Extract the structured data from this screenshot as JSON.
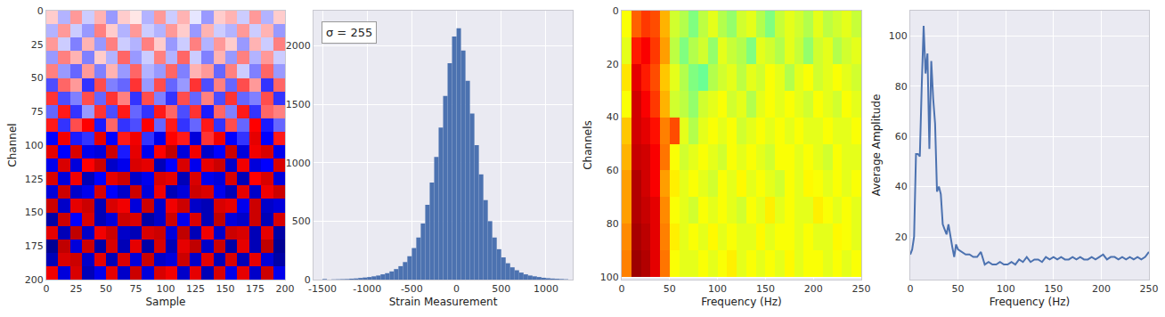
{
  "chart_data": [
    {
      "type": "heatmap",
      "color": "seismic",
      "xlabel": "Sample",
      "ylabel": "Channel",
      "x": [
        5,
        15,
        25,
        35,
        45,
        55,
        65,
        75,
        85,
        95,
        105,
        115,
        125,
        135,
        145,
        155,
        165,
        175,
        185,
        195
      ],
      "y": [
        5,
        15,
        25,
        35,
        45,
        55,
        65,
        75,
        85,
        95,
        105,
        115,
        125,
        135,
        145,
        155,
        165,
        175,
        185,
        195
      ],
      "z": [
        [
          100,
          -150,
          200,
          -100,
          150,
          -200,
          100,
          50,
          -150,
          200,
          -100,
          150,
          -50,
          -200,
          100,
          150,
          -100,
          200,
          -150,
          100
        ],
        [
          -150,
          200,
          -100,
          -200,
          250,
          100,
          -150,
          200,
          -100,
          -150,
          200,
          100,
          -200,
          150,
          -100,
          -150,
          200,
          -100,
          150,
          -200
        ],
        [
          200,
          -100,
          -250,
          150,
          -200,
          250,
          -100,
          -150,
          250,
          100,
          -200,
          -100,
          250,
          -150,
          200,
          100,
          -200,
          150,
          -100,
          250
        ],
        [
          -200,
          250,
          150,
          -250,
          100,
          -150,
          300,
          -200,
          -100,
          250,
          -150,
          300,
          -100,
          -250,
          150,
          -200,
          250,
          -150,
          200,
          -100
        ],
        [
          250,
          -200,
          -300,
          200,
          -250,
          150,
          -200,
          300,
          -150,
          -200,
          300,
          -250,
          150,
          200,
          -300,
          250,
          -100,
          -250,
          300,
          -200
        ],
        [
          -350,
          300,
          200,
          -400,
          350,
          -250,
          -300,
          400,
          -200,
          350,
          -300,
          -200,
          400,
          -350,
          250,
          -300,
          350,
          200,
          -400,
          300
        ],
        [
          400,
          -350,
          -250,
          350,
          -300,
          400,
          250,
          -400,
          350,
          -250,
          -400,
          350,
          -300,
          250,
          -350,
          400,
          -300,
          -250,
          350,
          -400
        ],
        [
          -300,
          450,
          -400,
          -200,
          400,
          -350,
          450,
          -300,
          -400,
          450,
          300,
          -350,
          400,
          -450,
          300,
          -250,
          450,
          -400,
          300,
          250
        ],
        [
          450,
          -400,
          350,
          500,
          -450,
          300,
          -400,
          -350,
          500,
          -300,
          450,
          -400,
          -300,
          450,
          -400,
          350,
          -300,
          500,
          -450,
          -300
        ],
        [
          -500,
          550,
          -450,
          -400,
          600,
          -500,
          450,
          550,
          -400,
          -550,
          500,
          450,
          -600,
          400,
          550,
          -500,
          -400,
          600,
          -500,
          450
        ],
        [
          600,
          -500,
          650,
          -550,
          -600,
          700,
          -450,
          600,
          -550,
          500,
          750,
          -600,
          550,
          -650,
          -500,
          700,
          -600,
          550,
          650,
          -550
        ],
        [
          -550,
          650,
          -600,
          500,
          700,
          -650,
          -550,
          650,
          600,
          -700,
          -500,
          650,
          -550,
          600,
          700,
          -650,
          550,
          -600,
          -500,
          650
        ],
        [
          650,
          -600,
          550,
          -700,
          -500,
          600,
          700,
          -650,
          -550,
          650,
          600,
          -700,
          650,
          -550,
          -600,
          650,
          -700,
          500,
          650,
          -600
        ],
        [
          -600,
          700,
          -650,
          -550,
          650,
          -500,
          -650,
          700,
          -600,
          550,
          -700,
          -600,
          700,
          650,
          -550,
          -700,
          600,
          -650,
          550,
          700
        ],
        [
          700,
          -650,
          600,
          700,
          -700,
          650,
          550,
          -600,
          700,
          -650,
          550,
          700,
          -650,
          -700,
          650,
          600,
          -550,
          700,
          -650,
          -600
        ],
        [
          -750,
          700,
          -500,
          650,
          -700,
          -600,
          700,
          650,
          -750,
          -650,
          700,
          -550,
          650,
          -700,
          750,
          -600,
          -650,
          700,
          -700,
          650
        ],
        [
          600,
          -700,
          750,
          -650,
          550,
          700,
          -650,
          -700,
          650,
          700,
          -600,
          750,
          -700,
          550,
          -650,
          700,
          650,
          -700,
          600,
          -750
        ],
        [
          -800,
          750,
          -600,
          700,
          -750,
          650,
          -700,
          600,
          -750,
          650,
          -700,
          600,
          750,
          -650,
          700,
          -750,
          600,
          -700,
          750,
          -800
        ],
        [
          -700,
          650,
          700,
          -650,
          600,
          -700,
          650,
          -600,
          700,
          -650,
          -600,
          700,
          -650,
          600,
          -700,
          650,
          -700,
          600,
          -600,
          -750
        ],
        [
          550,
          -600,
          650,
          -700,
          -550,
          600,
          -650,
          700,
          -600,
          650,
          550,
          -650,
          600,
          -700,
          650,
          -550,
          600,
          -650,
          700,
          -550
        ]
      ],
      "zlim": [
        -1000,
        1000
      ],
      "xlim": [
        0,
        200
      ],
      "xticks": [
        0,
        25,
        50,
        75,
        100,
        125,
        150,
        175,
        200
      ],
      "ylim": [
        200,
        0
      ],
      "yticks": [
        0,
        25,
        50,
        75,
        100,
        125,
        150,
        175,
        200
      ],
      "grid": true
    },
    {
      "type": "histogram",
      "color": "#4c72b0",
      "xlabel": "Strain Measurement",
      "annotation": "σ = 255",
      "bins": [
        -1500,
        -1450,
        -1400,
        -1350,
        -1300,
        -1250,
        -1200,
        -1150,
        -1100,
        -1050,
        -1000,
        -950,
        -900,
        -850,
        -800,
        -750,
        -700,
        -650,
        -600,
        -550,
        -500,
        -450,
        -400,
        -350,
        -300,
        -250,
        -200,
        -150,
        -100,
        -50,
        0,
        50,
        100,
        150,
        200,
        250,
        300,
        350,
        400,
        450,
        500,
        550,
        600,
        650,
        700,
        750,
        800,
        850,
        900,
        950,
        1000,
        1050,
        1100,
        1150,
        1200,
        1250
      ],
      "counts": [
        5,
        0,
        2,
        3,
        4,
        5,
        8,
        10,
        14,
        18,
        22,
        28,
        35,
        45,
        55,
        70,
        90,
        115,
        150,
        200,
        270,
        360,
        480,
        640,
        830,
        1050,
        1300,
        1570,
        1850,
        2080,
        2150,
        1960,
        1700,
        1420,
        1150,
        900,
        680,
        500,
        360,
        260,
        190,
        140,
        105,
        80,
        60,
        45,
        35,
        28,
        22,
        16,
        12,
        9,
        7,
        5,
        3
      ],
      "xlim": [
        -1600,
        1300
      ],
      "xticks": [
        -1500,
        -1000,
        -500,
        0,
        500,
        1000
      ],
      "ylim": [
        0,
        2300
      ],
      "yticks": [
        0,
        500,
        1000,
        1500,
        2000
      ],
      "grid": true
    },
    {
      "type": "heatmap",
      "color": "jet",
      "xlabel": "Frequency (Hz)",
      "ylabel": "Channels",
      "x": [
        5,
        15,
        25,
        35,
        45,
        55,
        65,
        75,
        85,
        95,
        105,
        115,
        125,
        135,
        145,
        155,
        165,
        175,
        185,
        195,
        205,
        215,
        225,
        235,
        245
      ],
      "y": [
        5,
        15,
        25,
        35,
        45,
        55,
        65,
        75,
        85,
        95
      ],
      "z": [
        [
          0.62,
          0.78,
          0.82,
          0.8,
          0.7,
          0.58,
          0.55,
          0.5,
          0.56,
          0.6,
          0.55,
          0.52,
          0.58,
          0.6,
          0.55,
          0.5,
          0.57,
          0.6,
          0.58,
          0.55,
          0.6,
          0.56,
          0.58,
          0.6,
          0.57
        ],
        [
          0.6,
          0.85,
          0.88,
          0.82,
          0.72,
          0.56,
          0.5,
          0.55,
          0.58,
          0.52,
          0.6,
          0.57,
          0.55,
          0.5,
          0.6,
          0.58,
          0.55,
          0.6,
          0.57,
          0.52,
          0.58,
          0.6,
          0.55,
          0.58,
          0.6
        ],
        [
          0.65,
          0.9,
          0.85,
          0.8,
          0.68,
          0.6,
          0.55,
          0.5,
          0.48,
          0.55,
          0.58,
          0.6,
          0.56,
          0.6,
          0.58,
          0.62,
          0.6,
          0.55,
          0.6,
          0.62,
          0.58,
          0.6,
          0.62,
          0.6,
          0.58
        ],
        [
          0.62,
          0.92,
          0.88,
          0.82,
          0.7,
          0.58,
          0.56,
          0.52,
          0.58,
          0.6,
          0.62,
          0.58,
          0.6,
          0.55,
          0.6,
          0.62,
          0.6,
          0.62,
          0.6,
          0.58,
          0.62,
          0.6,
          0.58,
          0.62,
          0.6
        ],
        [
          0.68,
          0.92,
          0.9,
          0.86,
          0.75,
          0.8,
          0.6,
          0.55,
          0.6,
          0.62,
          0.6,
          0.62,
          0.58,
          0.6,
          0.62,
          0.6,
          0.62,
          0.6,
          0.62,
          0.6,
          0.6,
          0.62,
          0.6,
          0.6,
          0.62
        ],
        [
          0.7,
          0.93,
          0.92,
          0.88,
          0.76,
          0.62,
          0.58,
          0.6,
          0.62,
          0.6,
          0.58,
          0.62,
          0.6,
          0.62,
          0.6,
          0.58,
          0.62,
          0.62,
          0.6,
          0.62,
          0.6,
          0.58,
          0.62,
          0.6,
          0.6
        ],
        [
          0.72,
          0.95,
          0.92,
          0.88,
          0.72,
          0.64,
          0.6,
          0.62,
          0.6,
          0.58,
          0.62,
          0.6,
          0.63,
          0.6,
          0.62,
          0.6,
          0.58,
          0.62,
          0.6,
          0.63,
          0.62,
          0.6,
          0.62,
          0.6,
          0.62
        ],
        [
          0.72,
          0.95,
          0.93,
          0.9,
          0.74,
          0.62,
          0.6,
          0.58,
          0.62,
          0.6,
          0.62,
          0.6,
          0.58,
          0.62,
          0.6,
          0.64,
          0.6,
          0.62,
          0.6,
          0.6,
          0.64,
          0.62,
          0.6,
          0.62,
          0.6
        ],
        [
          0.74,
          0.96,
          0.94,
          0.9,
          0.75,
          0.64,
          0.6,
          0.62,
          0.6,
          0.63,
          0.6,
          0.62,
          0.6,
          0.6,
          0.63,
          0.6,
          0.62,
          0.62,
          0.6,
          0.62,
          0.6,
          0.6,
          0.63,
          0.62,
          0.6
        ],
        [
          0.75,
          0.97,
          0.95,
          0.9,
          0.76,
          0.62,
          0.6,
          0.6,
          0.62,
          0.6,
          0.62,
          0.64,
          0.6,
          0.62,
          0.6,
          0.62,
          0.6,
          0.63,
          0.6,
          0.62,
          0.62,
          0.6,
          0.62,
          0.6,
          0.62
        ]
      ],
      "zlim": [
        0,
        1
      ],
      "xlim": [
        0,
        250
      ],
      "xticks": [
        0,
        50,
        100,
        150,
        200,
        250
      ],
      "ylim": [
        101,
        0
      ],
      "yticks": [
        0,
        20,
        40,
        60,
        80,
        100
      ],
      "grid": true
    },
    {
      "type": "line",
      "color": "#4c72b0",
      "xlabel": "Frequency (Hz)",
      "ylabel": "Average Amplitude",
      "x": [
        0,
        2,
        4,
        6,
        8,
        10,
        12,
        14,
        16,
        18,
        20,
        22,
        24,
        26,
        28,
        30,
        32,
        34,
        36,
        38,
        40,
        42,
        44,
        46,
        48,
        50,
        54,
        58,
        62,
        66,
        70,
        74,
        78,
        82,
        86,
        90,
        94,
        98,
        102,
        106,
        110,
        114,
        118,
        122,
        126,
        130,
        134,
        138,
        142,
        146,
        150,
        154,
        158,
        162,
        166,
        170,
        174,
        178,
        182,
        186,
        190,
        194,
        198,
        202,
        206,
        210,
        214,
        218,
        222,
        226,
        230,
        234,
        238,
        242,
        246,
        250
      ],
      "values": [
        13,
        15,
        20,
        53,
        53,
        52,
        80,
        104,
        85,
        93,
        55,
        90,
        75,
        65,
        38,
        40,
        37,
        25,
        23,
        21,
        25,
        20,
        16,
        12,
        17,
        15,
        14,
        13,
        13,
        12,
        12,
        14,
        9,
        10,
        9,
        9,
        10,
        9,
        9,
        10,
        9,
        11,
        10,
        12,
        10,
        11,
        11,
        10,
        12,
        11,
        12,
        11,
        12,
        11,
        11,
        12,
        11,
        12,
        11,
        11,
        12,
        11,
        12,
        13,
        11,
        12,
        12,
        11,
        12,
        11,
        12,
        11,
        12,
        11,
        12,
        14
      ],
      "xlim": [
        0,
        250
      ],
      "xticks": [
        0,
        50,
        100,
        150,
        200,
        250
      ],
      "ylim": [
        3,
        110
      ],
      "yticks": [
        20,
        40,
        60,
        80,
        100
      ],
      "grid": true
    }
  ]
}
